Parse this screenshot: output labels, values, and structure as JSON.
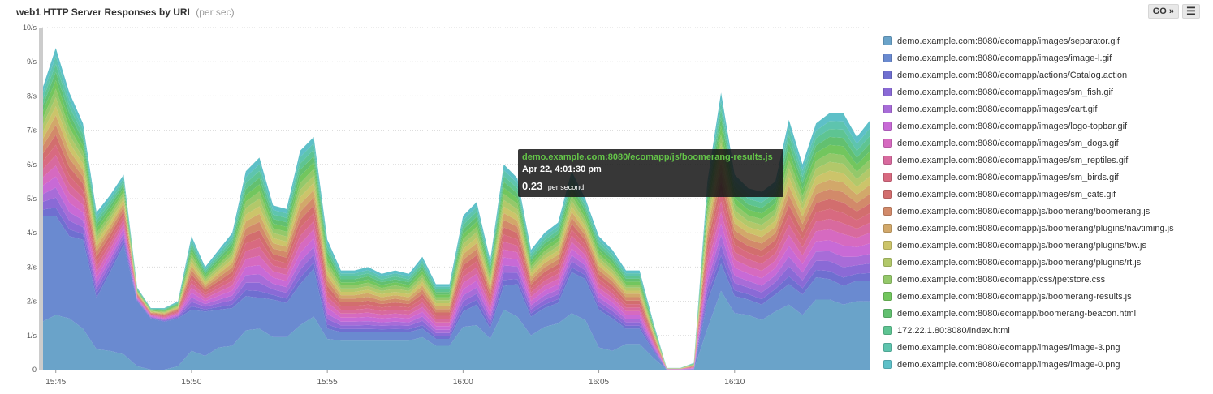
{
  "header": {
    "host": "web1",
    "title": "HTTP Server Responses by URI",
    "subtitle": "(per sec)"
  },
  "toolbar": {
    "go_label": "GO »",
    "menu_icon": "menu-icon"
  },
  "tooltip": {
    "series": "demo.example.com:8080/ecomapp/js/boomerang-results.js",
    "time": "Apr 22, 4:01:30 pm",
    "value": "0.23",
    "unit": "per second"
  },
  "chart_data": {
    "type": "area",
    "stacked": true,
    "ylim": [
      0,
      10
    ],
    "y_ticks": [
      "0",
      "1/s",
      "2/s",
      "3/s",
      "4/s",
      "5/s",
      "6/s",
      "7/s",
      "8/s",
      "9/s",
      "10/s"
    ],
    "x_ticks": [
      {
        "t": 0,
        "label": "15:45"
      },
      {
        "t": 5,
        "label": "15:50"
      },
      {
        "t": 10,
        "label": "15:55"
      },
      {
        "t": 15,
        "label": "16:00"
      },
      {
        "t": 20,
        "label": "16:05"
      },
      {
        "t": 25,
        "label": "16:10"
      }
    ],
    "x": [
      -0.5,
      0,
      0.5,
      1,
      1.5,
      2,
      2.5,
      3,
      3.5,
      4,
      4.5,
      5,
      5.5,
      6,
      6.5,
      7,
      7.5,
      8,
      8.5,
      9,
      9.5,
      10,
      10.5,
      11,
      11.5,
      12,
      12.5,
      13,
      13.5,
      14,
      14.5,
      15,
      15.5,
      16,
      16.5,
      17,
      17.5,
      18,
      18.5,
      19,
      19.5,
      20,
      20.5,
      21,
      21.5,
      22,
      22.5,
      23,
      23.5,
      24,
      24.5,
      25,
      25.5,
      26,
      26.5,
      27,
      27.5,
      28,
      28.5,
      29,
      29.5,
      30
    ],
    "totals": [
      8.2,
      9.4,
      8.1,
      7.2,
      4.6,
      5.1,
      5.7,
      2.4,
      1.8,
      1.8,
      2.0,
      3.9,
      3.0,
      3.5,
      4.0,
      5.8,
      6.2,
      4.8,
      4.7,
      6.4,
      6.8,
      3.8,
      2.9,
      2.9,
      3.0,
      2.8,
      2.9,
      2.8,
      3.3,
      2.5,
      2.5,
      4.5,
      4.9,
      3.2,
      6.0,
      5.6,
      3.5,
      4.0,
      4.3,
      5.8,
      5.0,
      3.9,
      3.5,
      2.9,
      2.9,
      1.4,
      0.05,
      0.05,
      0.2,
      5.5,
      8.1,
      5.7,
      5.3,
      5.2,
      5.5,
      7.3,
      6.0,
      7.2,
      7.5,
      7.5,
      6.8,
      7.3
    ],
    "base": [
      1.4,
      1.6,
      1.5,
      1.2,
      0.6,
      0.55,
      0.45,
      0.1,
      0,
      0,
      0.1,
      0.55,
      0.4,
      0.65,
      0.7,
      1.15,
      1.2,
      0.95,
      0.95,
      1.3,
      1.55,
      0.9,
      0.85,
      0.85,
      0.85,
      0.85,
      0.85,
      0.85,
      0.95,
      0.7,
      0.7,
      1.25,
      1.3,
      0.9,
      1.75,
      1.55,
      1.0,
      1.25,
      1.35,
      1.65,
      1.45,
      0.65,
      0.55,
      0.75,
      0.75,
      0.35,
      0,
      0,
      0,
      1.2,
      2.3,
      1.65,
      1.6,
      1.45,
      1.7,
      1.9,
      1.6,
      2.05,
      2.05,
      1.9,
      2.0,
      2.0
    ],
    "second": [
      3.1,
      2.9,
      2.4,
      2.6,
      1.5,
      2.3,
      3.2,
      1.9,
      1.5,
      1.4,
      1.4,
      1.2,
      1.3,
      1.1,
      1.1,
      1.0,
      0.9,
      1.1,
      1.0,
      1.2,
      1.4,
      0.3,
      0.25,
      0.25,
      0.25,
      0.25,
      0.25,
      0.25,
      0.25,
      0.2,
      0.2,
      0.45,
      0.6,
      0.3,
      0.7,
      0.95,
      0.55,
      0.55,
      0.6,
      1.2,
      1.2,
      1.1,
      0.95,
      0.45,
      0.45,
      0.2,
      0,
      0,
      0,
      0.8,
      0.8,
      0.5,
      0.45,
      0.45,
      0.5,
      0.6,
      0.6,
      0.65,
      0.6,
      0.55,
      0.6,
      0.6
    ],
    "series": [
      {
        "name": "demo.example.com:8080/ecomapp/images/separator.gif",
        "color": "#6aa3c9"
      },
      {
        "name": "demo.example.com:8080/ecomapp/images/image-l.gif",
        "color": "#6a8ad0"
      },
      {
        "name": "demo.example.com:8080/ecomapp/actions/Catalog.action",
        "color": "#6f6fd0"
      },
      {
        "name": "demo.example.com:8080/ecomapp/images/sm_fish.gif",
        "color": "#8a6ad6"
      },
      {
        "name": "demo.example.com:8080/ecomapp/images/cart.gif",
        "color": "#a86cd8"
      },
      {
        "name": "demo.example.com:8080/ecomapp/images/logo-topbar.gif",
        "color": "#c86ad6"
      },
      {
        "name": "demo.example.com:8080/ecomapp/images/sm_dogs.gif",
        "color": "#d66ac0"
      },
      {
        "name": "demo.example.com:8080/ecomapp/images/sm_reptiles.gif",
        "color": "#d86a9e"
      },
      {
        "name": "demo.example.com:8080/ecomapp/images/sm_birds.gif",
        "color": "#d86a80"
      },
      {
        "name": "demo.example.com:8080/ecomapp/images/sm_cats.gif",
        "color": "#d26e6e"
      },
      {
        "name": "demo.example.com:8080/ecomapp/js/boomerang/boomerang.js",
        "color": "#d28a6a"
      },
      {
        "name": "demo.example.com:8080/ecomapp/js/boomerang/plugins/navtiming.js",
        "color": "#d2a86a"
      },
      {
        "name": "demo.example.com:8080/ecomapp/js/boomerang/plugins/bw.js",
        "color": "#ccc46a"
      },
      {
        "name": "demo.example.com:8080/ecomapp/js/boomerang/plugins/rt.js",
        "color": "#b2c86a"
      },
      {
        "name": "demo.example.com:8080/ecomapp/css/jpetstore.css",
        "color": "#94c86a"
      },
      {
        "name": "demo.example.com:8080/ecomapp/js/boomerang-results.js",
        "color": "#72c65e"
      },
      {
        "name": "demo.example.com:8080/ecomapp/boomerang-beacon.html",
        "color": "#62c070"
      },
      {
        "name": "172.22.1.80:8080/index.html",
        "color": "#5ec492"
      },
      {
        "name": "demo.example.com:8080/ecomapp/images/image-3.png",
        "color": "#5ec4ae"
      },
      {
        "name": "demo.example.com:8080/ecomapp/images/image-0.png",
        "color": "#5ec0c8"
      }
    ]
  }
}
